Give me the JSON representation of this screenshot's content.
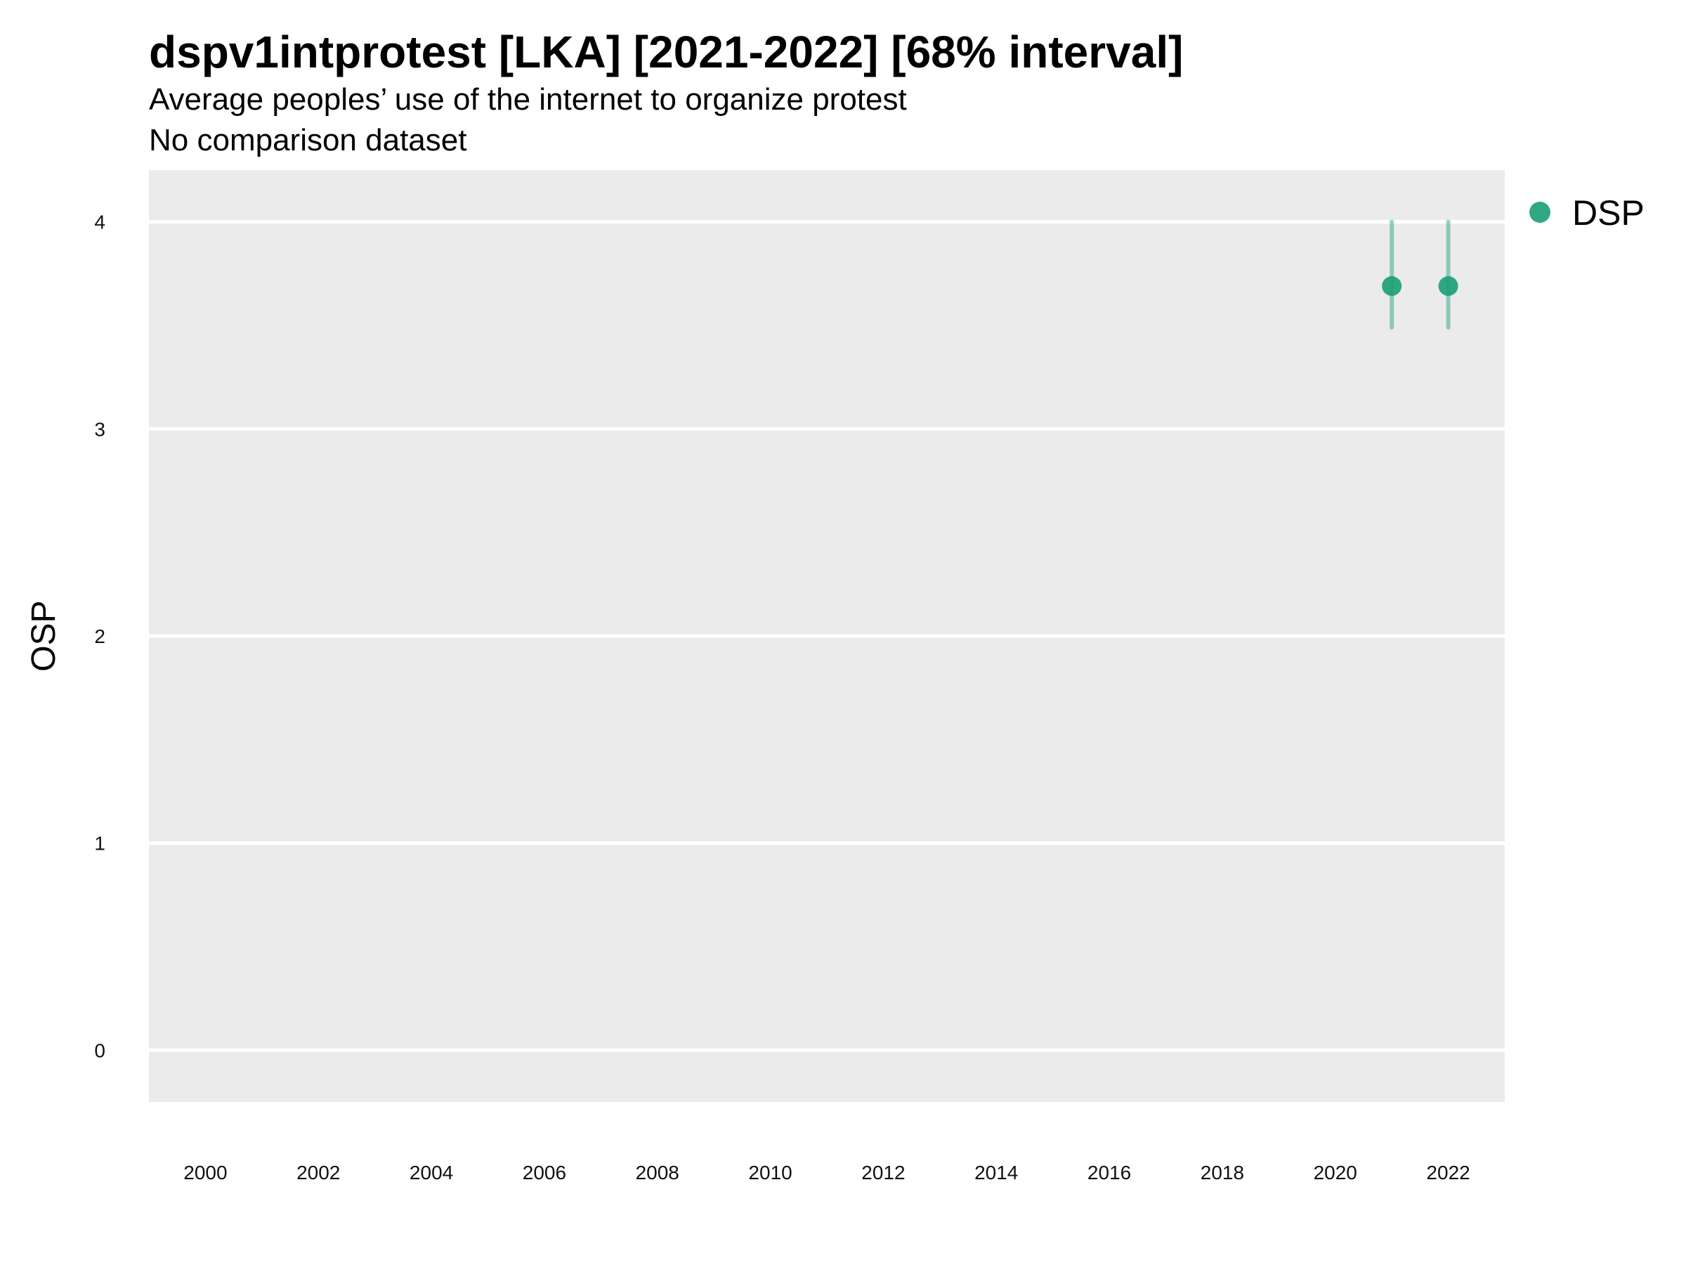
{
  "chart_data": {
    "type": "scatter",
    "title": "dspv1intprotest [LKA] [2021-2022] [68% interval]",
    "subtitle_lines": [
      "Average peoples’ use of the internet to organize protest",
      "No comparison dataset"
    ],
    "ylabel": "OSP",
    "xlabel": "",
    "xlim": [
      1999,
      2023
    ],
    "ylim": [
      -0.25,
      4.25
    ],
    "x_ticks": [
      2000,
      2002,
      2004,
      2006,
      2008,
      2010,
      2012,
      2014,
      2016,
      2018,
      2020,
      2022
    ],
    "y_ticks": [
      0,
      1,
      2,
      3,
      4
    ],
    "grid": true,
    "legend_position": "right",
    "colors": {
      "panel_background": "#EBEBEB",
      "grid": "#FFFFFF",
      "series": "#1B9E77"
    },
    "series": [
      {
        "name": "DSP",
        "points": [
          {
            "x": 2021,
            "y": 3.69,
            "low": 3.49,
            "high": 4.0
          },
          {
            "x": 2022,
            "y": 3.69,
            "low": 3.49,
            "high": 4.0
          }
        ]
      }
    ]
  }
}
